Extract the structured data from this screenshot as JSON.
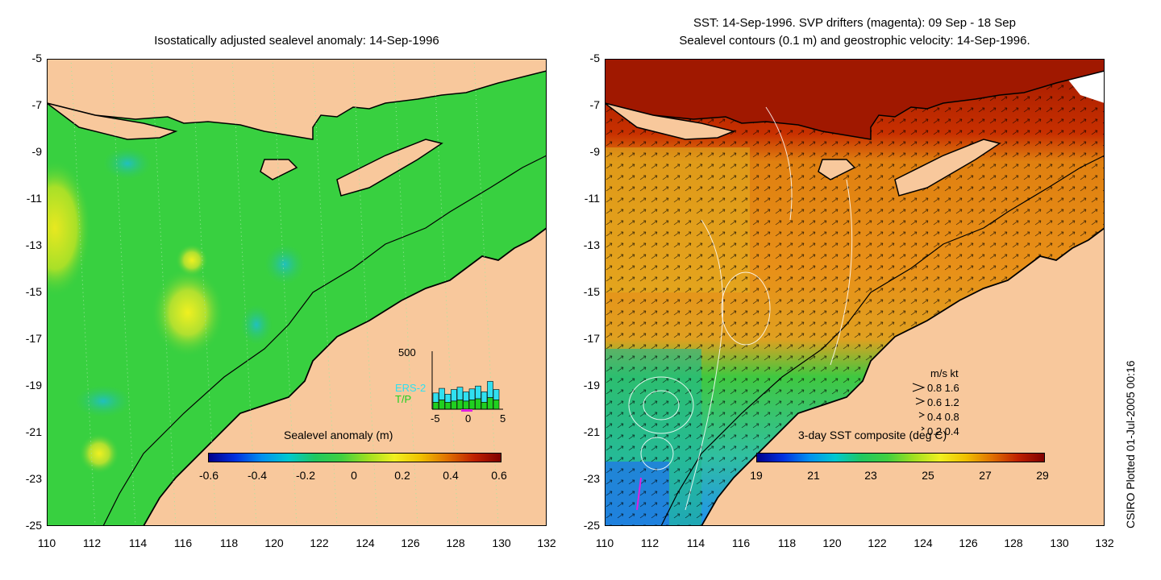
{
  "left_panel": {
    "title": "Isostatically adjusted sealevel anomaly: 14-Sep-1996",
    "y_ticks": [
      "-5",
      "-7",
      "-9",
      "-11",
      "-13",
      "-15",
      "-17",
      "-19",
      "-21",
      "-23",
      "-25"
    ],
    "x_ticks": [
      "110",
      "112",
      "114",
      "116",
      "118",
      "120",
      "122",
      "124",
      "126",
      "128",
      "130",
      "132"
    ],
    "colorbar": {
      "label": "Sealevel anomaly (m)",
      "ticks": [
        "-0.6",
        "-0.4",
        "-0.2",
        "0",
        "0.2",
        "0.4",
        "0.6"
      ],
      "range": [
        -0.6,
        0.6
      ]
    },
    "inset": {
      "ymax_label": "500",
      "x_ticks": [
        "-5",
        "0",
        "5"
      ],
      "series_labels": [
        "ERS-2",
        "T/P"
      ],
      "ers_color": "#30e0f0",
      "tp_color": "#20d020",
      "bar_totals": [
        140,
        180,
        130,
        170,
        190,
        150,
        175,
        200,
        150,
        240,
        170
      ],
      "bar_tp": [
        60,
        80,
        60,
        70,
        80,
        70,
        80,
        90,
        60,
        100,
        80
      ]
    }
  },
  "right_panel": {
    "title_line1": "SST: 14-Sep-1996. SVP drifters (magenta): 09 Sep - 18 Sep",
    "title_line2": "Sealevel contours (0.1 m) and geostrophic velocity: 14-Sep-1996.",
    "y_ticks": [
      "-5",
      "-7",
      "-9",
      "-11",
      "-13",
      "-15",
      "-17",
      "-19",
      "-21",
      "-23",
      "-25"
    ],
    "x_ticks": [
      "110",
      "112",
      "114",
      "116",
      "118",
      "120",
      "122",
      "124",
      "126",
      "128",
      "130",
      "132"
    ],
    "colorbar": {
      "label": "3-day SST composite (deg C)",
      "ticks": [
        "19",
        "21",
        "23",
        "25",
        "27",
        "29"
      ],
      "range": [
        19,
        29
      ]
    },
    "velocity_legend": {
      "header": "m/s  kt",
      "rows": [
        "0.8  1.6",
        "0.6  1.2",
        "0.4  0.8",
        "0.2  0.4"
      ]
    }
  },
  "map": {
    "lon_range": [
      110,
      132
    ],
    "lat_range": [
      -25,
      -5
    ],
    "land_color": "#f8c89c",
    "ocean_green": "#30d040"
  },
  "credit": "CSIRO Plotted 01-Jul-2005 00:16"
}
